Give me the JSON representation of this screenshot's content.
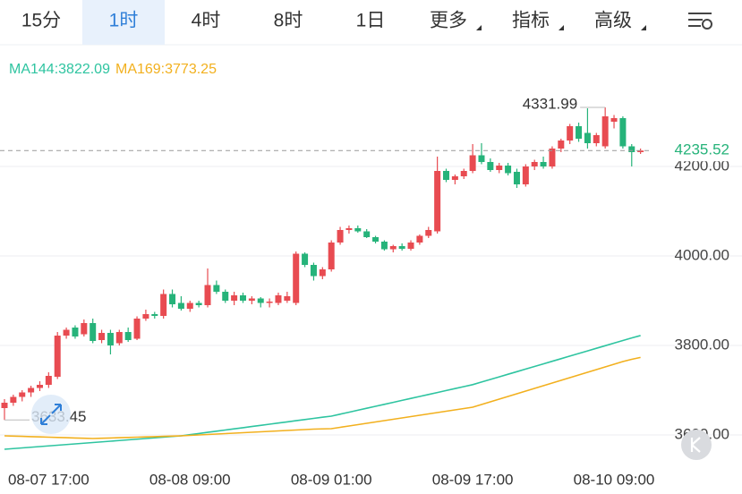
{
  "tabs": {
    "items": [
      "15分",
      "1时",
      "4时",
      "8时",
      "1日",
      "更多",
      "指标",
      "高级"
    ],
    "active": 1,
    "dropdowns": [
      5,
      6,
      7
    ]
  },
  "chart_data": {
    "type": "candlestick",
    "up_color": "#e84b51",
    "down_color": "#26b37a",
    "categories": [
      null,
      null,
      null,
      null,
      null,
      "08-07 17:00",
      null,
      null,
      null,
      null,
      null,
      null,
      null,
      null,
      null,
      null,
      null,
      null,
      null,
      null,
      null,
      "08-08 09:00",
      null,
      null,
      null,
      null,
      null,
      null,
      null,
      null,
      null,
      null,
      null,
      null,
      null,
      null,
      null,
      "08-09 01:00",
      null,
      null,
      null,
      null,
      null,
      null,
      null,
      null,
      null,
      null,
      null,
      null,
      null,
      null,
      null,
      "08-09 17:00",
      null,
      null,
      null,
      null,
      null,
      null,
      null,
      null,
      null,
      null,
      null,
      null,
      null,
      null,
      null,
      "08-10 09:00",
      null,
      null,
      null
    ],
    "ohlc": [
      [
        3660,
        3680,
        3633.45,
        3672
      ],
      [
        3672,
        3690,
        3665,
        3685
      ],
      [
        3685,
        3700,
        3675,
        3695
      ],
      [
        3695,
        3710,
        3685,
        3705
      ],
      [
        3705,
        3720,
        3698,
        3712
      ],
      [
        3712,
        3740,
        3705,
        3732
      ],
      [
        3730,
        3830,
        3725,
        3822
      ],
      [
        3822,
        3840,
        3815,
        3835
      ],
      [
        3840,
        3845,
        3815,
        3820
      ],
      [
        3825,
        3858,
        3820,
        3850
      ],
      [
        3850,
        3860,
        3805,
        3810
      ],
      [
        3812,
        3835,
        3805,
        3828
      ],
      [
        3828,
        3835,
        3780,
        3800
      ],
      [
        3805,
        3835,
        3800,
        3830
      ],
      [
        3830,
        3840,
        3808,
        3812
      ],
      [
        3815,
        3865,
        3812,
        3860
      ],
      [
        3860,
        3880,
        3855,
        3870
      ],
      [
        3870,
        3875,
        3860,
        3866
      ],
      [
        3866,
        3925,
        3860,
        3915
      ],
      [
        3915,
        3925,
        3885,
        3892
      ],
      [
        3895,
        3910,
        3878,
        3882
      ],
      [
        3882,
        3900,
        3875,
        3895
      ],
      [
        3895,
        3900,
        3885,
        3890
      ],
      [
        3890,
        3972,
        3885,
        3935
      ],
      [
        3935,
        3945,
        3915,
        3920
      ],
      [
        3920,
        3925,
        3895,
        3900
      ],
      [
        3900,
        3920,
        3890,
        3912
      ],
      [
        3912,
        3918,
        3895,
        3900
      ],
      [
        3900,
        3910,
        3892,
        3905
      ],
      [
        3905,
        3908,
        3885,
        3895
      ],
      [
        3895,
        3905,
        3885,
        3898
      ],
      [
        3895,
        3918,
        3890,
        3912
      ],
      [
        3900,
        3920,
        3895,
        3910
      ],
      [
        3895,
        4010,
        3890,
        4005
      ],
      [
        4005,
        4008,
        3975,
        3980
      ],
      [
        3980,
        3985,
        3945,
        3955
      ],
      [
        3955,
        3975,
        3948,
        3970
      ],
      [
        3970,
        4035,
        3965,
        4030
      ],
      [
        4030,
        4065,
        4025,
        4058
      ],
      [
        4058,
        4068,
        4050,
        4062
      ],
      [
        4062,
        4068,
        4052,
        4055
      ],
      [
        4055,
        4060,
        4040,
        4042
      ],
      [
        4042,
        4045,
        4028,
        4032
      ],
      [
        4032,
        4035,
        4012,
        4015
      ],
      [
        4015,
        4025,
        4008,
        4022
      ],
      [
        4022,
        4028,
        4012,
        4016
      ],
      [
        4016,
        4035,
        4012,
        4030
      ],
      [
        4030,
        4048,
        4025,
        4045
      ],
      [
        4045,
        4065,
        4040,
        4058
      ],
      [
        4055,
        4222,
        4050,
        4190
      ],
      [
        4190,
        4195,
        4165,
        4170
      ],
      [
        4170,
        4182,
        4160,
        4178
      ],
      [
        4178,
        4195,
        4172,
        4190
      ],
      [
        4190,
        4250,
        4185,
        4225
      ],
      [
        4225,
        4252,
        4205,
        4210
      ],
      [
        4210,
        4218,
        4188,
        4192
      ],
      [
        4192,
        4208,
        4185,
        4202
      ],
      [
        4202,
        4208,
        4180,
        4185
      ],
      [
        4188,
        4195,
        4152,
        4160
      ],
      [
        4160,
        4205,
        4155,
        4200
      ],
      [
        4200,
        4215,
        4192,
        4210
      ],
      [
        4210,
        4222,
        4195,
        4200
      ],
      [
        4200,
        4245,
        4195,
        4240
      ],
      [
        4240,
        4262,
        4232,
        4258
      ],
      [
        4258,
        4295,
        4250,
        4290
      ],
      [
        4290,
        4298,
        4255,
        4262
      ],
      [
        4275,
        4330,
        4240,
        4252
      ],
      [
        4252,
        4275,
        4245,
        4270
      ],
      [
        4245,
        4331.99,
        4240,
        4312
      ],
      [
        4300,
        4315,
        4285,
        4308
      ],
      [
        4308,
        4312,
        4240,
        4245
      ],
      [
        4245,
        4250,
        4200,
        4232
      ],
      [
        4232,
        4240,
        4228,
        4235.52
      ]
    ],
    "series": [
      {
        "name": "MA144:3822.09",
        "color": "#2ec4a0",
        "values": [
          3568,
          3569.5,
          3571,
          3572.5,
          3574,
          3575.5,
          3577,
          3578.5,
          3580,
          3581.5,
          3583,
          3584.5,
          3586,
          3587.5,
          3589,
          3590.5,
          3592,
          3593.5,
          3595,
          3596.5,
          3598,
          3600.6,
          3603.2,
          3605.8,
          3608.4,
          3611,
          3613.6,
          3616.2,
          3618.8,
          3621.4,
          3624,
          3626.6,
          3629.2,
          3631.8,
          3634.4,
          3637,
          3639.6,
          3642,
          3646.4,
          3650.8,
          3655.2,
          3659.6,
          3664,
          3668.4,
          3672.8,
          3677.2,
          3681.6,
          3686,
          3690.4,
          3694.8,
          3699.2,
          3703.6,
          3708,
          3712.4,
          3718.2,
          3724,
          3729.8,
          3735.6,
          3741.4,
          3747.2,
          3753,
          3758.8,
          3764.6,
          3770.4,
          3776.2,
          3782,
          3787.8,
          3793.6,
          3799.4,
          3805.2,
          3811,
          3816.8,
          3822.09
        ]
      },
      {
        "name": "MA169:3773.25",
        "color": "#f2b01e",
        "values": [
          3598,
          3597.4,
          3596.8,
          3596.2,
          3595.6,
          3595,
          3594.4,
          3593.8,
          3593.2,
          3592.6,
          3592,
          3592.6,
          3593.2,
          3593.8,
          3594.4,
          3595,
          3595.6,
          3596.2,
          3596.8,
          3597.4,
          3598,
          3599,
          3600,
          3601,
          3602,
          3603,
          3604,
          3605,
          3606,
          3607,
          3608,
          3609,
          3610,
          3611,
          3612,
          3613,
          3613.5,
          3614,
          3617,
          3620,
          3623,
          3626,
          3629,
          3632,
          3635,
          3638,
          3641,
          3644,
          3647,
          3650,
          3653,
          3656,
          3659,
          3662,
          3668,
          3674,
          3680,
          3686,
          3692,
          3698,
          3704,
          3710,
          3716,
          3722,
          3728,
          3734,
          3740,
          3746,
          3752,
          3758,
          3764,
          3769,
          3773.25
        ]
      }
    ],
    "ylim": [
      3532,
      4382
    ],
    "yticks": [
      {
        "value": 3600,
        "label": "3600.00"
      },
      {
        "value": 3800,
        "label": "3800.00"
      },
      {
        "value": 4000,
        "label": "4000.00"
      },
      {
        "value": 4200,
        "label": "4200.00"
      }
    ],
    "grid": true
  }
}
